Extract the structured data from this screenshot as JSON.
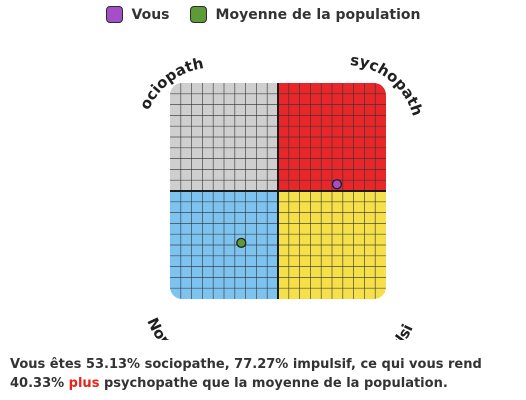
{
  "chart_data": {
    "type": "scatter",
    "xlabel": "",
    "ylabel": "",
    "xlim": [
      0,
      100
    ],
    "ylim": [
      0,
      100
    ],
    "grid": true,
    "legend_placement": "top-center",
    "quadrants": [
      {
        "label": "Sociopathe",
        "position": "top-left",
        "color": "#cfcfcf"
      },
      {
        "label": "Psychopathe",
        "position": "top-right",
        "color": "#e8272a"
      },
      {
        "label": "Normal",
        "position": "bottom-left",
        "color": "#7dc3ef"
      },
      {
        "label": "Impulsif",
        "position": "bottom-right",
        "color": "#f6e04a"
      }
    ],
    "series": [
      {
        "name": "Vous",
        "color": "#a44fc7",
        "points": [
          {
            "x": 77.27,
            "y": 53.13
          }
        ]
      },
      {
        "name": "Moyenne de la population",
        "color": "#5e9a35",
        "points": [
          {
            "x": 33,
            "y": 26
          }
        ]
      }
    ]
  },
  "result": {
    "text_before": "Vous êtes 53.13% sociopathe, 77.27% impulsif, ce qui vous rend 40.33% ",
    "highlight": "plus",
    "highlight_color": "#e8231b",
    "text_after": " psychopathe que la moyenne de la population."
  }
}
